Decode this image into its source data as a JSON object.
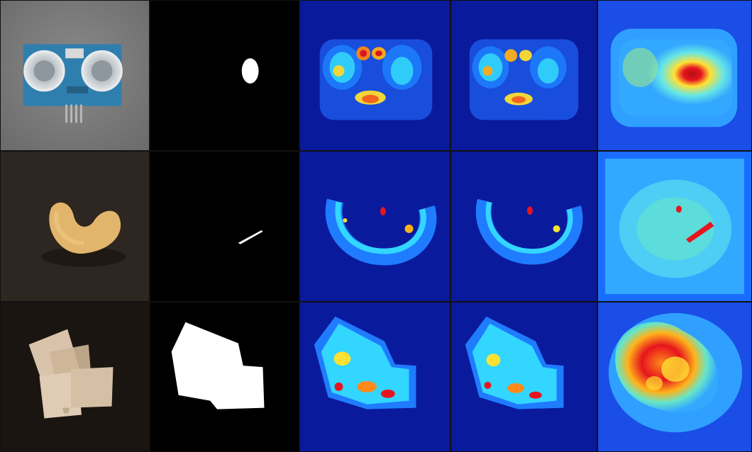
{
  "figure": {
    "columns": [
      "input",
      "ground-truth-mask",
      "anomaly-map-a",
      "anomaly-map-b",
      "anomaly-map-c"
    ],
    "rows": [
      {
        "subject": "ultrasonic-sensor",
        "input_background": "#7f7f7f",
        "mask_shape": "small-ellipse",
        "map_palette": "jet"
      },
      {
        "subject": "cashew",
        "input_background": "#2e2620",
        "mask_shape": "thin-sliver",
        "map_palette": "jet"
      },
      {
        "subject": "plastic-pieces",
        "input_background": "#1b1512",
        "mask_shape": "large-polygon",
        "map_palette": "jet"
      }
    ],
    "colors": {
      "jet_low": "#0a1a9c",
      "jet_mid_low": "#1a6cff",
      "jet_mid": "#33d6ff",
      "jet_mid_high": "#ffe133",
      "jet_high": "#e6141e",
      "mask_fg": "#ffffff",
      "mask_bg": "#000000"
    }
  }
}
